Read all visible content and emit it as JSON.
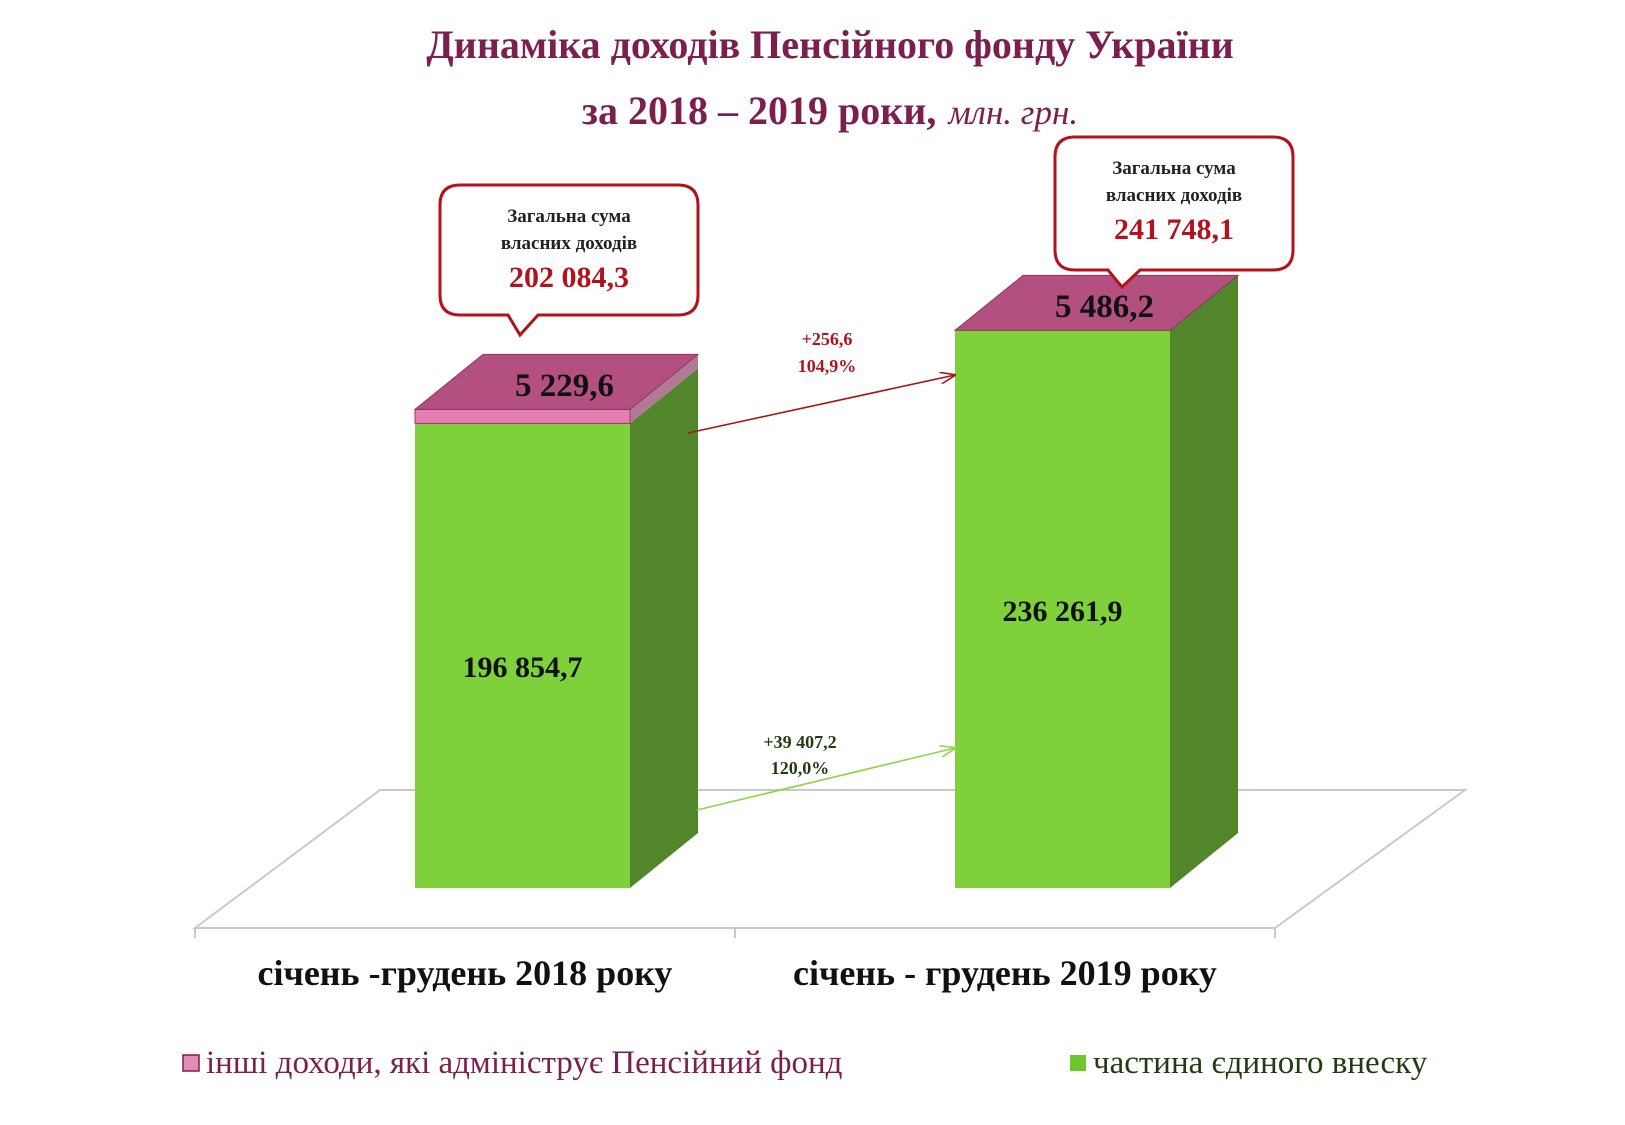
{
  "title": {
    "line1": "Динаміка доходів Пенсійного фонду України",
    "line2_bold": "за 2018 – 2019 роки,",
    "line2_unit": "млн. грн."
  },
  "colors": {
    "title": "#7a1f4e",
    "green_front": "#7ed13a",
    "green_side": "#52862a",
    "pink_top": "#b4507f",
    "callout_border": "#b3121d",
    "callout_value": "#b3121d",
    "arrow_red": "#a51818",
    "arrow_green": "#8ed44b"
  },
  "chart_data": {
    "type": "bar",
    "stacked": true,
    "three_d": true,
    "categories": [
      "січень -грудень 2018 року",
      "січень - грудень 2019 року"
    ],
    "series": [
      {
        "name": "частина єдиного внеску",
        "values": [
          196854.7,
          236261.9
        ],
        "labels": [
          "196 854,7",
          "236 261,9"
        ],
        "color": "#7ed13a"
      },
      {
        "name": "інші доходи, які адмініструє Пенсійний фонд",
        "values": [
          5229.6,
          5486.2
        ],
        "labels": [
          "5 229,6",
          "5 486,2"
        ],
        "color": "#b4507f"
      }
    ],
    "totals": {
      "caption": "Загальна сума власних доходів",
      "caption_line1": "Загальна сума",
      "caption_line2": "власних доходів",
      "values": [
        202084.3,
        241748.1
      ],
      "labels": [
        "202 084,3",
        "241 748,1"
      ]
    },
    "changes": {
      "other_income": {
        "abs": "+256,6",
        "pct": "104,9%"
      },
      "single_contribution": {
        "abs": "+39 407,2",
        "pct": "120,0%"
      }
    },
    "legend_position": "bottom",
    "grid": false
  }
}
